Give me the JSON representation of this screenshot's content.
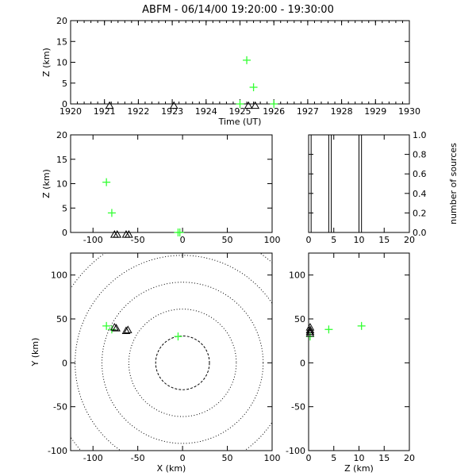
{
  "title": "ABFM - 06/14/00 19:20:00 - 19:30:00",
  "colors": {
    "source": "#33ff33",
    "station": "#000000",
    "frame": "#000000",
    "background": "#ffffff"
  },
  "chart_data": [
    {
      "id": "time_height",
      "type": "scatter",
      "xlabel": "Time (UT)",
      "ylabel": "Z (km)",
      "xlim": [
        1920,
        1930
      ],
      "ylim": [
        0,
        20
      ],
      "xticks": [
        "1920",
        "1921",
        "1922",
        "1923",
        "1924",
        "1925",
        "1926",
        "1927",
        "1928",
        "1929",
        "1930"
      ],
      "yticks": [
        "0",
        "5",
        "10",
        "15",
        "20"
      ],
      "series": [
        {
          "marker": "plus",
          "color": "#33ff33",
          "x": [
            1925.0,
            1925.2,
            1925.4,
            1926.0
          ],
          "y": [
            0.0,
            10.5,
            4.0,
            0.0
          ]
        },
        {
          "marker": "triangle",
          "color": "#000000",
          "x": [
            1921.15,
            1923.05,
            1925.25,
            1925.45
          ],
          "y": [
            -0.5,
            -0.5,
            -0.5,
            -0.5
          ]
        }
      ]
    },
    {
      "id": "x_height",
      "type": "scatter",
      "xlabel": "",
      "ylabel": "Z (km)",
      "xlim": [
        -125,
        100
      ],
      "ylim": [
        0,
        20
      ],
      "xticks": [
        "-100",
        "-50",
        "0",
        "50",
        "100"
      ],
      "yticks": [
        "0",
        "5",
        "10",
        "15",
        "20"
      ],
      "series": [
        {
          "marker": "plus",
          "color": "#33ff33",
          "x": [
            -85,
            -79,
            -5,
            -3
          ],
          "y": [
            10.3,
            4.0,
            0.0,
            0.0
          ]
        },
        {
          "marker": "triangle",
          "color": "#000000",
          "x": [
            -76,
            -73,
            -63,
            -60
          ],
          "y": [
            -0.5,
            -0.5,
            -0.5,
            -0.5
          ]
        }
      ]
    },
    {
      "id": "height_histogram",
      "type": "bar",
      "xlabel": "",
      "ylabel": "number of sources",
      "xlim": [
        0,
        20
      ],
      "ylim": [
        0,
        1.0
      ],
      "xticks": [
        "0",
        "5",
        "10",
        "15",
        "20"
      ],
      "yticks": [
        "0.0",
        "0.2",
        "0.4",
        "0.6",
        "0.8",
        "1.0"
      ],
      "bars": [
        {
          "x0": 0.0,
          "x1": 0.5,
          "value": 1.0
        },
        {
          "x0": 4.0,
          "x1": 4.5,
          "value": 1.0
        },
        {
          "x0": 10.0,
          "x1": 10.5,
          "value": 1.0
        }
      ]
    },
    {
      "id": "plan_view",
      "type": "scatter",
      "xlabel": "X (km)",
      "ylabel": "Y (km)",
      "xlim": [
        -125,
        100
      ],
      "ylim": [
        -100,
        125
      ],
      "xticks": [
        "-100",
        "-50",
        "0",
        "50",
        "100"
      ],
      "yticks": [
        "-100",
        "-50",
        "0",
        "50",
        "100"
      ],
      "range_rings_km": [
        30,
        60,
        90,
        120,
        150
      ],
      "range_ring_center": [
        0,
        0
      ],
      "series": [
        {
          "marker": "plus",
          "color": "#33ff33",
          "x": [
            -85,
            -79,
            -5
          ],
          "y": [
            42,
            38,
            30
          ]
        },
        {
          "marker": "triangle",
          "color": "#000000",
          "x": [
            -76,
            -74,
            -63,
            -61
          ],
          "y": [
            40,
            39,
            36,
            37
          ]
        }
      ]
    },
    {
      "id": "height_y",
      "type": "scatter",
      "xlabel": "Z (km)",
      "ylabel": "",
      "xlim": [
        0,
        20
      ],
      "ylim": [
        -100,
        125
      ],
      "xticks": [
        "0",
        "5",
        "10",
        "15",
        "20"
      ],
      "yticks": [
        "-100",
        "-50",
        "0",
        "50",
        "100"
      ],
      "series": [
        {
          "marker": "plus",
          "color": "#33ff33",
          "x": [
            0.3,
            4.0,
            10.5
          ],
          "y": [
            30,
            38,
            42
          ]
        },
        {
          "marker": "triangle",
          "color": "#000000",
          "x": [
            0.3,
            0.3,
            0.3,
            0.3
          ],
          "y": [
            40,
            37,
            35,
            33
          ]
        }
      ]
    }
  ]
}
